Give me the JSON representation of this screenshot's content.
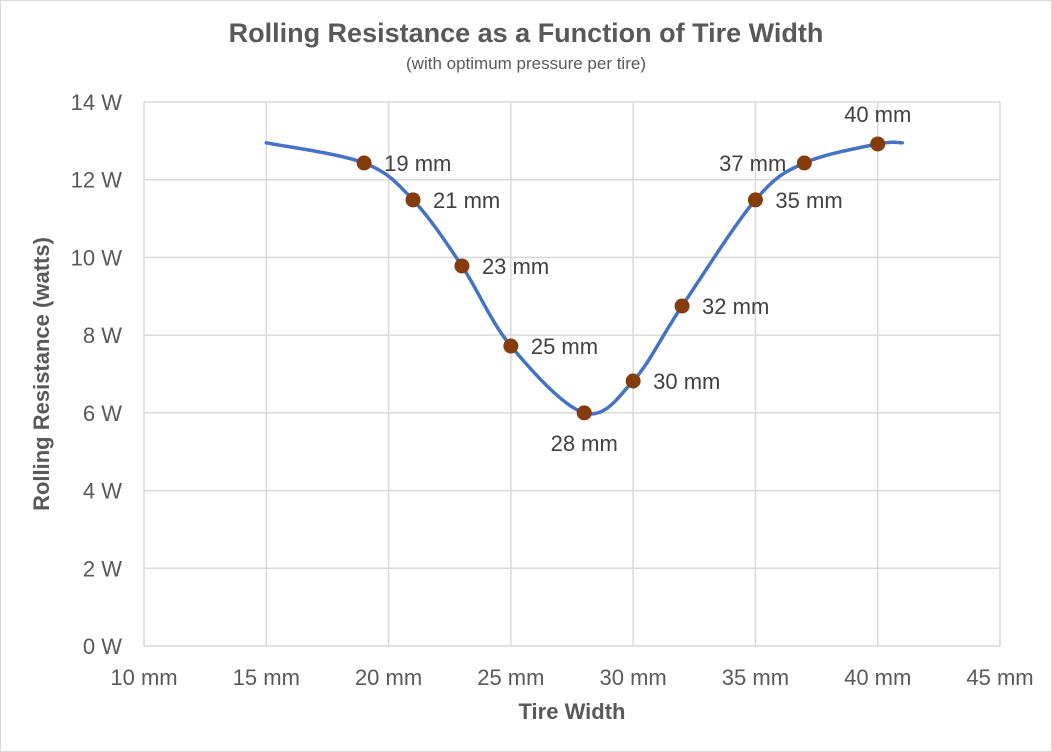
{
  "chart_data": {
    "type": "line",
    "title": "Rolling Resistance as a Function of Tire Width",
    "subtitle": "(with optimum pressure per tire)",
    "xlabel": "Tire Width",
    "ylabel": "Rolling Resistance (watts)",
    "xlim": [
      10,
      45
    ],
    "ylim": [
      0,
      14
    ],
    "x_ticks": [
      10,
      15,
      20,
      25,
      30,
      35,
      40,
      45
    ],
    "x_tick_labels": [
      "10 mm",
      "15 mm",
      "20 mm",
      "25 mm",
      "30 mm",
      "35 mm",
      "40 mm",
      "45 mm"
    ],
    "y_ticks": [
      0,
      2,
      4,
      6,
      8,
      10,
      12,
      14
    ],
    "y_tick_labels": [
      "0 W",
      "2 W",
      "4 W",
      "6 W",
      "8 W",
      "10 W",
      "12 W",
      "14 W"
    ],
    "grid": true,
    "smooth": true,
    "line_color": "#4472C4",
    "marker_color": "#843C0C",
    "curve": [
      {
        "x": 15,
        "y": 12.95
      },
      {
        "x": 19,
        "y": 12.43
      },
      {
        "x": 21,
        "y": 11.48
      },
      {
        "x": 23,
        "y": 9.78
      },
      {
        "x": 25,
        "y": 7.72
      },
      {
        "x": 28,
        "y": 6.0
      },
      {
        "x": 30,
        "y": 6.82
      },
      {
        "x": 32,
        "y": 8.75
      },
      {
        "x": 35,
        "y": 11.48
      },
      {
        "x": 37,
        "y": 12.43
      },
      {
        "x": 40,
        "y": 12.92
      },
      {
        "x": 41,
        "y": 12.95
      }
    ],
    "points": [
      {
        "x": 19,
        "y": 12.43,
        "label": "19 mm",
        "label_pos": "right"
      },
      {
        "x": 21,
        "y": 11.48,
        "label": "21 mm",
        "label_pos": "right"
      },
      {
        "x": 23,
        "y": 9.78,
        "label": "23 mm",
        "label_pos": "right"
      },
      {
        "x": 25,
        "y": 7.72,
        "label": "25 mm",
        "label_pos": "right"
      },
      {
        "x": 28,
        "y": 6.0,
        "label": "28 mm",
        "label_pos": "below"
      },
      {
        "x": 30,
        "y": 6.82,
        "label": "30 mm",
        "label_pos": "right"
      },
      {
        "x": 32,
        "y": 8.75,
        "label": "32 mm",
        "label_pos": "right"
      },
      {
        "x": 35,
        "y": 11.48,
        "label": "35 mm",
        "label_pos": "right"
      },
      {
        "x": 37,
        "y": 12.43,
        "label": "37 mm",
        "label_pos": "left"
      },
      {
        "x": 40,
        "y": 12.92,
        "label": "40 mm",
        "label_pos": "above"
      }
    ]
  }
}
